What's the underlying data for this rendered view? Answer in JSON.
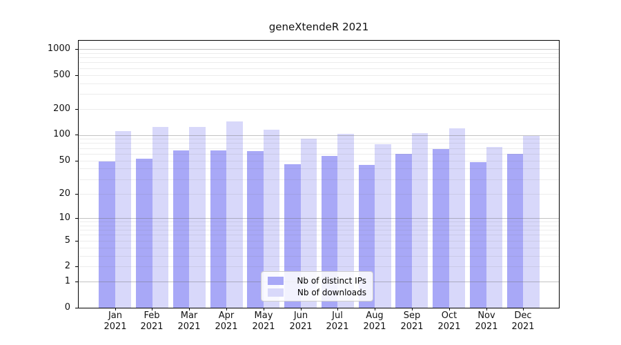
{
  "title": "geneXtendeR 2021",
  "chart_data": {
    "type": "bar",
    "title": "geneXtendeR 2021",
    "categories": [
      "Jan 2021",
      "Feb 2021",
      "Mar 2021",
      "Apr 2021",
      "May 2021",
      "Jun 2021",
      "Jul 2021",
      "Aug 2021",
      "Sep 2021",
      "Oct 2021",
      "Nov 2021",
      "Dec 2021"
    ],
    "series": [
      {
        "name": "Nb of distinct IPs",
        "color": "#a8a8f7",
        "values": [
          49,
          53,
          66,
          66,
          64,
          45,
          57,
          44,
          60,
          68,
          48,
          60
        ]
      },
      {
        "name": "Nb of downloads",
        "color": "#d8d8fa",
        "values": [
          111,
          125,
          124,
          144,
          114,
          90,
          103,
          78,
          105,
          119,
          72,
          98
        ]
      }
    ],
    "xlabel": "",
    "ylabel": "",
    "y_scale": "pseudo-log (log10 of value+1), 0 at baseline",
    "y_ticks": [
      0,
      1,
      2,
      5,
      10,
      20,
      50,
      100,
      200,
      500,
      1000
    ],
    "ylim": [
      0,
      1250
    ],
    "grid": "horizontal major lines at 1,10,100,1000 and faint minor lines at 2-9 per decade",
    "legend_position": "inside, lower center",
    "frame_color": "#000000",
    "grid_major_color": "#c3c3c3",
    "grid_minor_color": "#ebebeb",
    "background_color": "#ffffff"
  }
}
